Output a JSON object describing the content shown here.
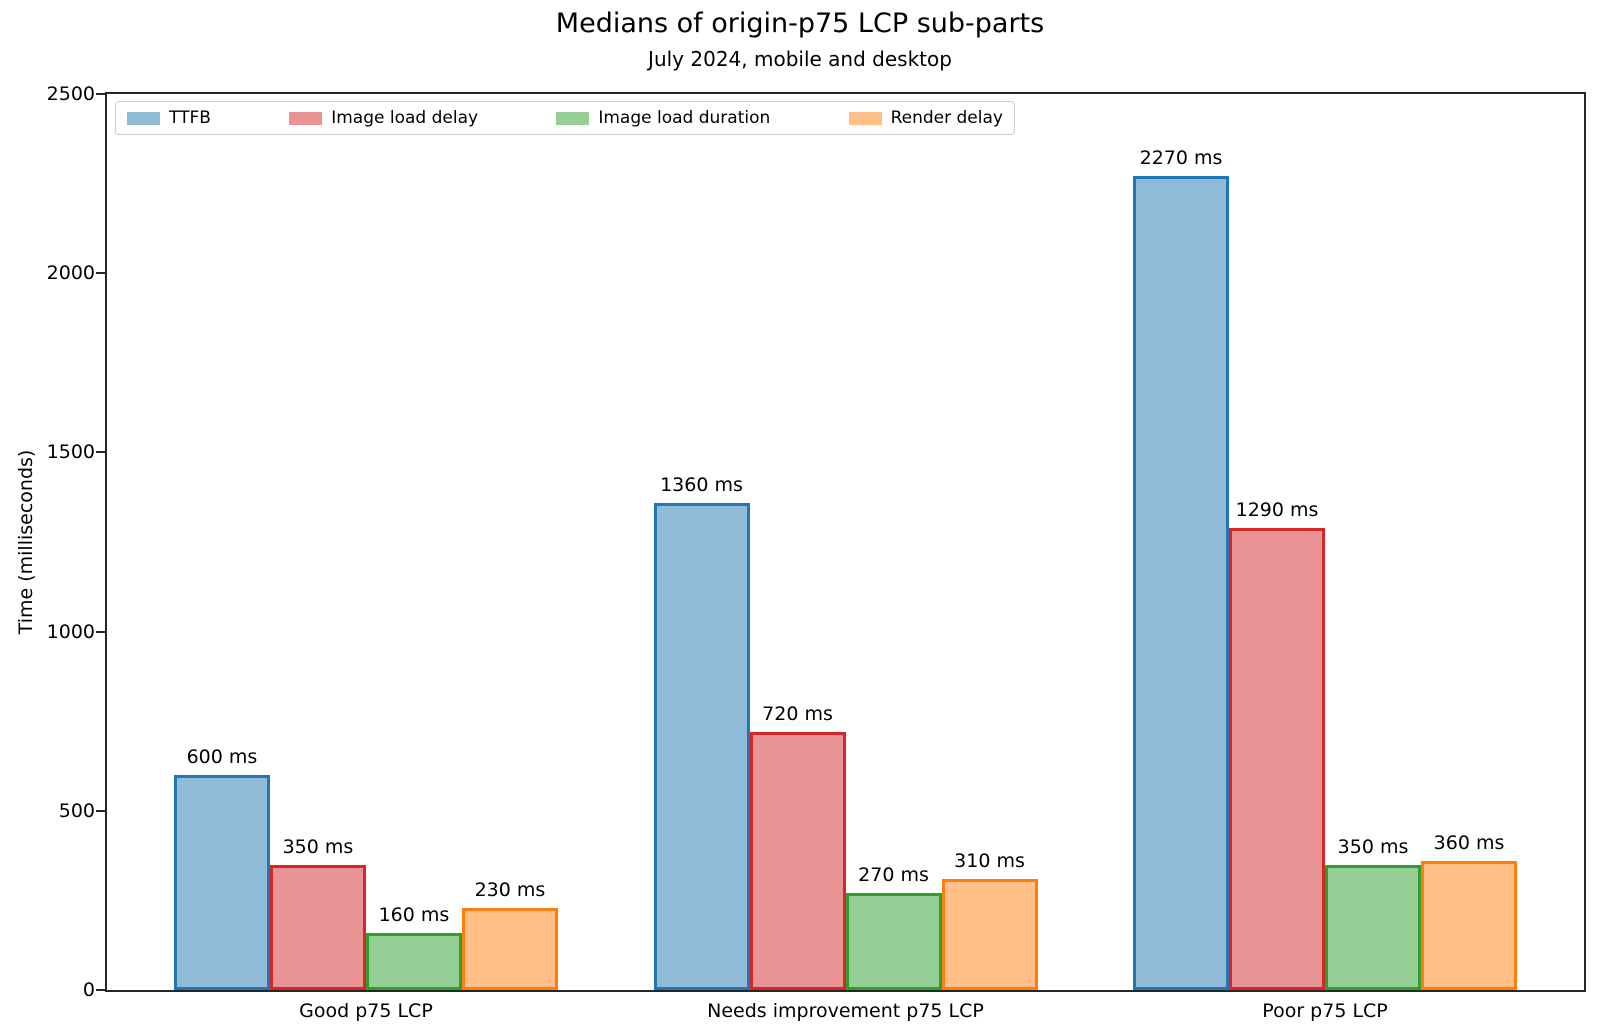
{
  "chart_data": {
    "type": "bar",
    "title": "Medians of origin-p75 LCP sub-parts",
    "subtitle": "July 2024, mobile and desktop",
    "categories": [
      "Good p75 LCP",
      "Needs improvement p75 LCP",
      "Poor p75 LCP"
    ],
    "series": [
      {
        "name": "TTFB",
        "values": [
          600,
          1360,
          2270
        ],
        "fill_color": "#8FBBD9",
        "edge_color": "#1F77B4"
      },
      {
        "name": "Image load delay",
        "values": [
          350,
          720,
          1290
        ],
        "fill_color": "#EA9394",
        "edge_color": "#D62728"
      },
      {
        "name": "Image load duration",
        "values": [
          160,
          270,
          350
        ],
        "fill_color": "#95CF95",
        "edge_color": "#2CA02C"
      },
      {
        "name": "Render delay",
        "values": [
          230,
          310,
          360
        ],
        "fill_color": "#FFBF86",
        "edge_color": "#FF7F0E"
      }
    ],
    "value_label_suffix": " ms",
    "xlabel": "",
    "ylabel": "Time (milliseconds)",
    "ylim": [
      0,
      2500
    ],
    "yticks": [
      0,
      500,
      1000,
      1500,
      2000,
      2500
    ],
    "xlim": [
      -0.54,
      2.54
    ],
    "grid": false,
    "legend": {
      "position": "upper left",
      "frame": true,
      "columns": 4
    }
  }
}
